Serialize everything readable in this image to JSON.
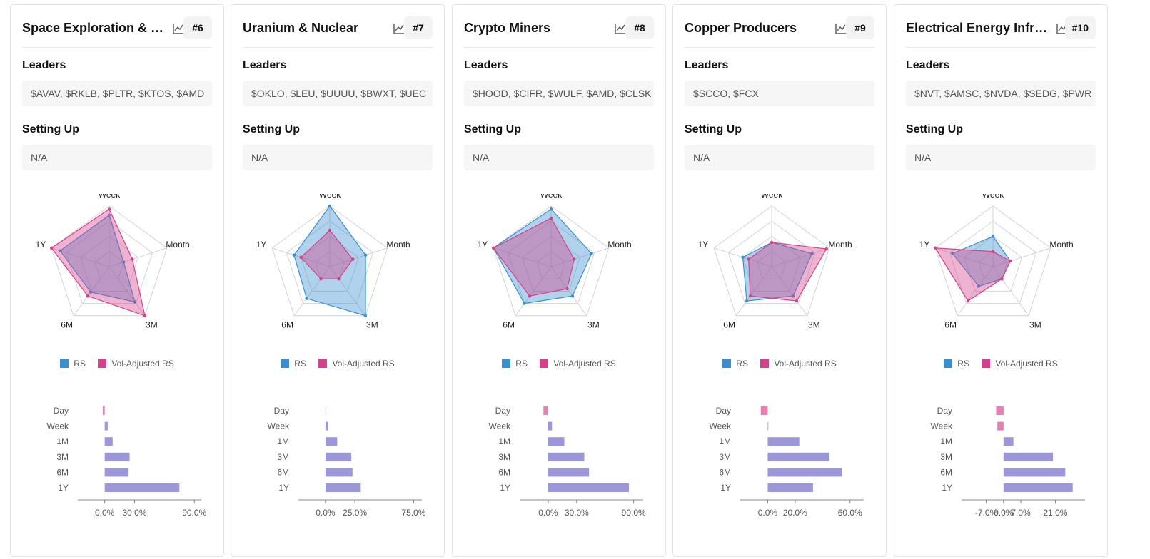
{
  "labels": {
    "leaders": "Leaders",
    "setting_up": "Setting Up",
    "legend_rs": "RS",
    "legend_vol": "Vol-Adjusted RS"
  },
  "colors": {
    "rs": "#3a8fd0",
    "vol": "#d4418a",
    "bar_positive": "#9b97d8",
    "bar_negative": "#e57fb4"
  },
  "radar_axes": [
    "Week",
    "Month",
    "3M",
    "6M",
    "1Y"
  ],
  "bar_categories": [
    "Day",
    "Week",
    "1M",
    "3M",
    "6M",
    "1Y"
  ],
  "cards": [
    {
      "title": "Space Exploration & Infrastructure",
      "rank": "#6",
      "leaders": "$AVAV, $RKLB, $PLTR, $KTOS, $AMD",
      "setting_up": "N/A",
      "chart_data": {
        "radar": {
          "type": "radar",
          "series": [
            {
              "name": "RS",
              "values": [
                0.85,
                0.25,
                0.72,
                0.52,
                0.85
              ]
            },
            {
              "name": "Vol-Adjusted RS",
              "values": [
                0.95,
                0.4,
                1.0,
                0.6,
                1.0
              ]
            }
          ]
        },
        "bars": {
          "type": "bar",
          "values": [
            -2,
            3,
            8,
            25,
            24,
            75
          ],
          "ticks": [
            0,
            30,
            90
          ],
          "tick_labels": [
            "0.0%",
            "30.0%",
            "90.0%"
          ],
          "xlim": [
            -27,
            97
          ]
        }
      }
    },
    {
      "title": "Uranium & Nuclear",
      "rank": "#7",
      "leaders": "$OKLO, $LEU, $UUUU, $BWXT, $UEC",
      "setting_up": "N/A",
      "chart_data": {
        "radar": {
          "type": "radar",
          "series": [
            {
              "name": "RS",
              "values": [
                1.0,
                0.62,
                1.0,
                0.65,
                0.62
              ]
            },
            {
              "name": "Vol-Adjusted RS",
              "values": [
                0.6,
                0.4,
                0.25,
                0.25,
                0.5
              ]
            }
          ]
        },
        "bars": {
          "type": "bar",
          "values": [
            0,
            2,
            10,
            22,
            23,
            30
          ],
          "ticks": [
            0,
            25,
            75
          ],
          "tick_labels": [
            "0.0%",
            "25.0%",
            "75.0%"
          ],
          "xlim": [
            -23,
            82
          ]
        }
      }
    },
    {
      "title": "Crypto Miners",
      "rank": "#8",
      "leaders": "$HOOD, $CIFR, $WULF, $AMD, $CLSK",
      "setting_up": "N/A",
      "chart_data": {
        "radar": {
          "type": "radar",
          "series": [
            {
              "name": "RS",
              "values": [
                0.95,
                0.7,
                0.6,
                0.75,
                1.0
              ]
            },
            {
              "name": "Vol-Adjusted RS",
              "values": [
                0.8,
                0.4,
                0.45,
                0.6,
                1.0
              ]
            }
          ]
        },
        "bars": {
          "type": "bar",
          "values": [
            -5,
            4,
            17,
            38,
            43,
            85
          ],
          "ticks": [
            0,
            30,
            90
          ],
          "tick_labels": [
            "0.0%",
            "30.0%",
            "90.0%"
          ],
          "xlim": [
            -30,
            100
          ]
        }
      }
    },
    {
      "title": "Copper Producers",
      "rank": "#9",
      "leaders": "$SCCO, $FCX",
      "setting_up": "N/A",
      "chart_data": {
        "radar": {
          "type": "radar",
          "series": [
            {
              "name": "RS",
              "values": [
                0.4,
                0.7,
                0.6,
                0.7,
                0.5
              ]
            },
            {
              "name": "Vol-Adjusted RS",
              "values": [
                0.4,
                0.95,
                0.7,
                0.6,
                0.4
              ]
            }
          ]
        },
        "bars": {
          "type": "bar",
          "values": [
            -5,
            0,
            23,
            45,
            54,
            33
          ],
          "ticks": [
            0,
            20,
            60
          ],
          "tick_labels": [
            "0.0%",
            "20.0%",
            "60.0%"
          ],
          "xlim": [
            -20,
            70
          ]
        }
      }
    },
    {
      "title": "Electrical Energy Infrastructure",
      "rank": "#10",
      "leaders": "$NVT, $AMSC, $NVDA, $SEDG, $PWR",
      "setting_up": "N/A",
      "chart_data": {
        "radar": {
          "type": "radar",
          "series": [
            {
              "name": "RS",
              "values": [
                0.5,
                0.3,
                0.25,
                0.4,
                0.7
              ]
            },
            {
              "name": "Vol-Adjusted RS",
              "values": [
                0.25,
                0.3,
                0.25,
                0.7,
                1.0
              ]
            }
          ]
        },
        "bars": {
          "type": "bar",
          "values": [
            -3,
            -2.5,
            4,
            20,
            25,
            28
          ],
          "ticks": [
            -7,
            0,
            7,
            21
          ],
          "tick_labels": [
            "-7.0%",
            "0.0%",
            "7.0%",
            "21.0%"
          ],
          "xlim": [
            -17,
            33
          ]
        }
      }
    }
  ]
}
